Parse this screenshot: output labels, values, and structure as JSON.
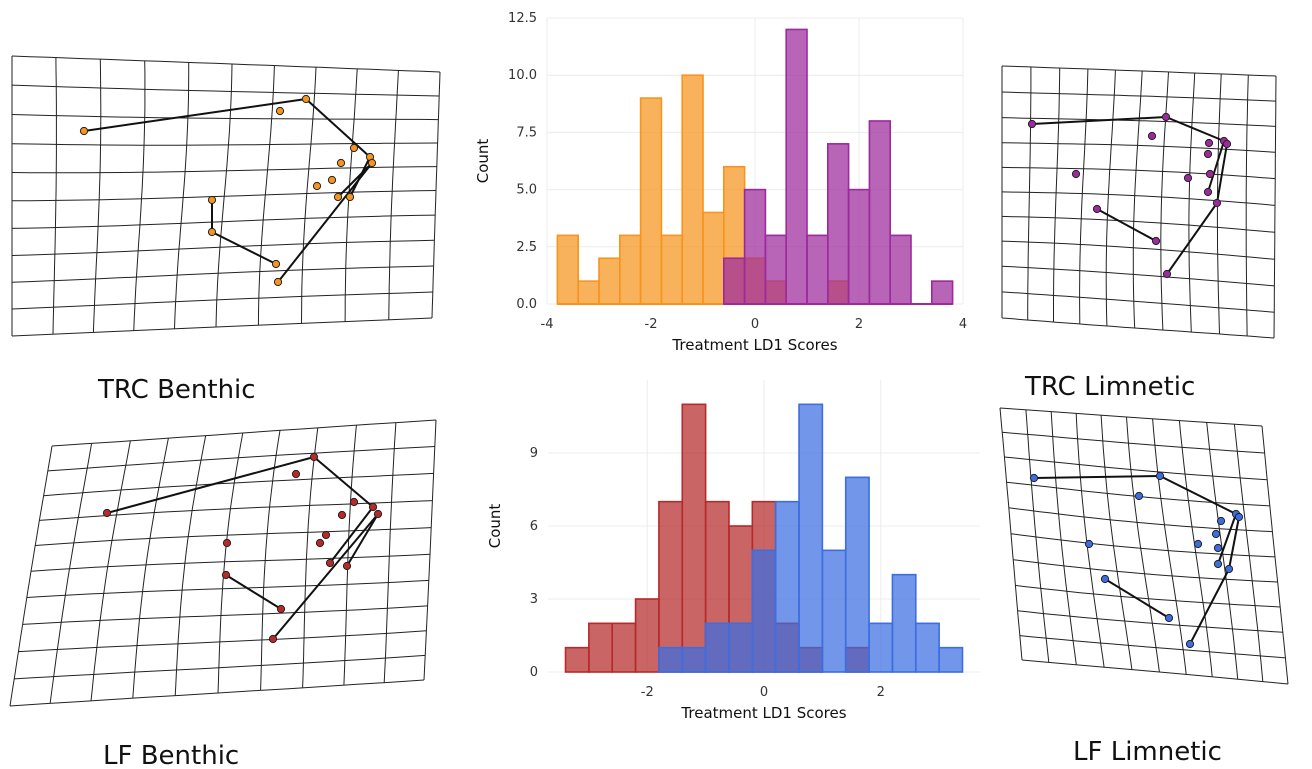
{
  "labels": {
    "trc_benthic": "TRC Benthic",
    "trc_limnetic": "TRC Limnetic",
    "lf_benthic": "LF Benthic",
    "lf_limnetic": "LF Limnetic"
  },
  "colors": {
    "trc_benthic": "#f7941d",
    "trc_limnetic": "#9c2a9c",
    "lf_benthic": "#b62a2a",
    "lf_limnetic": "#3c6ee0",
    "grid": "#222222"
  },
  "chart_data": [
    {
      "type": "bar",
      "subtype": "overlapping-histogram",
      "xlabel": "Treatment LD1 Scores",
      "ylabel": "Count",
      "xlim": [
        -4,
        4
      ],
      "ylim": [
        0,
        12.5
      ],
      "xticks": [
        "-4",
        "0",
        "2",
        "4"
      ],
      "xtick_values": [
        -4,
        0,
        2,
        4
      ],
      "yticks": [
        "0.0",
        "2.5",
        "5.0",
        "7.5",
        "10.0",
        "12.5"
      ],
      "ytick_values": [
        0,
        2.5,
        5,
        7.5,
        10,
        12.5
      ],
      "extra_xtick": {
        "label": "-2",
        "value": -2
      },
      "bin_width": 0.4,
      "series": [
        {
          "color": "#f7941d",
          "bins": [
            [
              -3.8,
              3
            ],
            [
              -3.4,
              1
            ],
            [
              -3.0,
              2
            ],
            [
              -2.6,
              3
            ],
            [
              -2.2,
              9
            ],
            [
              -1.8,
              3
            ],
            [
              -1.4,
              10
            ],
            [
              -1.0,
              4
            ],
            [
              -0.6,
              6
            ],
            [
              -0.2,
              2
            ],
            [
              0.2,
              1
            ],
            [
              1.4,
              1
            ]
          ]
        },
        {
          "color": "#9c2a9c",
          "bins": [
            [
              -0.6,
              2
            ],
            [
              -0.2,
              5
            ],
            [
              0.2,
              3
            ],
            [
              0.6,
              12
            ],
            [
              1.0,
              3
            ],
            [
              1.4,
              7
            ],
            [
              1.8,
              5
            ],
            [
              2.2,
              8
            ],
            [
              2.6,
              3
            ],
            [
              3.4,
              1
            ]
          ]
        }
      ]
    },
    {
      "type": "bar",
      "subtype": "overlapping-histogram",
      "xlabel": "Treatment LD1 Scores",
      "ylabel": "Count",
      "xlim": [
        -3.7,
        3.7
      ],
      "ylim": [
        0,
        12
      ],
      "xticks": [
        "-2",
        "0",
        "2"
      ],
      "xtick_values": [
        -2,
        0,
        2
      ],
      "yticks": [
        "0",
        "3",
        "6",
        "9"
      ],
      "ytick_values": [
        0,
        3,
        6,
        9
      ],
      "bin_width": 0.4,
      "series": [
        {
          "color": "#b62a2a",
          "bins": [
            [
              -3.4,
              1
            ],
            [
              -3.0,
              2
            ],
            [
              -2.6,
              2
            ],
            [
              -2.2,
              3
            ],
            [
              -1.8,
              7
            ],
            [
              -1.4,
              11
            ],
            [
              -1.0,
              7
            ],
            [
              -0.6,
              6
            ],
            [
              -0.2,
              7
            ],
            [
              0.2,
              2
            ],
            [
              0.6,
              1
            ],
            [
              1.4,
              1
            ]
          ]
        },
        {
          "color": "#3c6ee0",
          "bins": [
            [
              -1.8,
              1
            ],
            [
              -1.4,
              1
            ],
            [
              -1.0,
              2
            ],
            [
              -0.6,
              2
            ],
            [
              -0.2,
              5
            ],
            [
              0.2,
              7
            ],
            [
              0.6,
              11
            ],
            [
              1.0,
              5
            ],
            [
              1.4,
              8
            ],
            [
              1.8,
              2
            ],
            [
              2.2,
              4
            ],
            [
              2.6,
              2
            ],
            [
              3.0,
              1
            ]
          ]
        }
      ]
    }
  ]
}
